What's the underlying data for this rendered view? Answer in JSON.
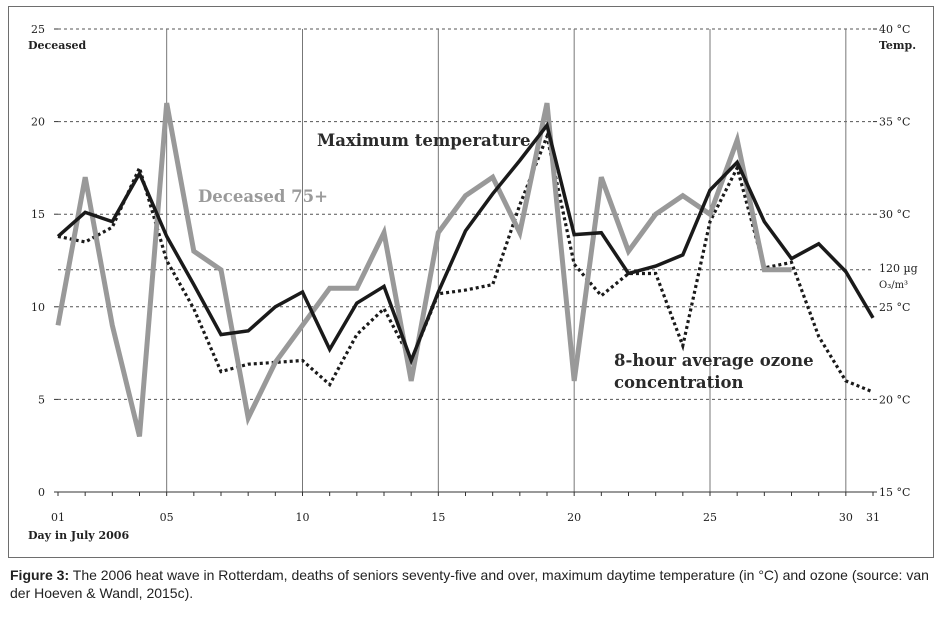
{
  "chart_data": {
    "type": "line",
    "left_axis": {
      "title": "Deceased",
      "ylim": [
        0,
        25
      ],
      "ticks": [
        0,
        5,
        10,
        15,
        20,
        25
      ]
    },
    "right_axis": {
      "title": "Temp.",
      "ylim": [
        15,
        40
      ],
      "ticks": [
        {
          "value": 15,
          "label": "15 °C"
        },
        {
          "value": 20,
          "label": "20 °C"
        },
        {
          "value": 25,
          "label": "25 °C"
        },
        {
          "value": 30,
          "label": "30 °C"
        },
        {
          "value": 35,
          "label": "35 °C"
        },
        {
          "value": 40,
          "label": "40 °C"
        }
      ],
      "ozone_reference": {
        "value": 27,
        "label_line1": "120 µg",
        "label_line2": "O₃/m³"
      }
    },
    "x_axis": {
      "label": "Day in  July 2006",
      "xlim": [
        1,
        31
      ],
      "ticks": [
        {
          "value": 1,
          "label": "01"
        },
        {
          "value": 5,
          "label": "05"
        },
        {
          "value": 10,
          "label": "10"
        },
        {
          "value": 15,
          "label": "15"
        },
        {
          "value": 20,
          "label": "20"
        },
        {
          "value": 25,
          "label": "25"
        },
        {
          "value": 30,
          "label": "30"
        },
        {
          "value": 31,
          "label": "31"
        }
      ],
      "vertical_gridlines": [
        5,
        10,
        15,
        20,
        25,
        30
      ]
    },
    "series": [
      {
        "name": "Deceased 75+",
        "axis": "left",
        "color": "#999999",
        "style": "solid",
        "x": [
          1,
          2,
          3,
          4,
          5,
          6,
          7,
          8,
          9,
          10,
          11,
          12,
          13,
          14,
          15,
          16,
          17,
          18,
          19,
          20,
          21,
          22,
          23,
          24,
          25,
          26,
          27,
          28,
          29,
          30,
          31
        ],
        "values": [
          9,
          17,
          9,
          3,
          21,
          13,
          12,
          4,
          7,
          9,
          11,
          11,
          14,
          6,
          14,
          16,
          17,
          14,
          21,
          6,
          17,
          13,
          15,
          16,
          15,
          19,
          12,
          12,
          null,
          null,
          null
        ]
      },
      {
        "name": "Maximum temperature",
        "axis": "right",
        "color": "#1a1a1a",
        "style": "solid",
        "x": [
          1,
          2,
          3,
          4,
          5,
          6,
          7,
          8,
          9,
          10,
          11,
          12,
          13,
          14,
          15,
          16,
          17,
          18,
          19,
          20,
          21,
          22,
          23,
          24,
          25,
          26,
          27,
          28,
          29,
          30,
          31
        ],
        "values": [
          28.8,
          30.1,
          29.6,
          32.2,
          28.8,
          26.2,
          23.5,
          23.7,
          25.0,
          25.8,
          22.7,
          25.2,
          26.1,
          22.1,
          25.8,
          29.1,
          31.1,
          32.9,
          34.8,
          28.9,
          29.0,
          26.8,
          27.2,
          27.8,
          31.3,
          32.8,
          29.6,
          27.6,
          28.4,
          26.9,
          24.4
        ]
      },
      {
        "name": "8-hour average ozone concentration",
        "axis": "right",
        "color": "#1a1a1a",
        "style": "dotted",
        "x": [
          1,
          2,
          3,
          4,
          5,
          6,
          7,
          8,
          9,
          10,
          11,
          12,
          13,
          14,
          15,
          16,
          17,
          18,
          19,
          20,
          21,
          22,
          23,
          24,
          25,
          26,
          27,
          28,
          29,
          30,
          31
        ],
        "values": [
          28.8,
          28.5,
          29.3,
          32.5,
          27.5,
          24.9,
          21.5,
          21.9,
          22.0,
          22.1,
          20.8,
          23.5,
          24.9,
          22.1,
          25.7,
          25.9,
          26.2,
          30.5,
          34.2,
          27.3,
          25.6,
          26.8,
          26.8,
          22.9,
          29.6,
          32.5,
          27.1,
          27.4,
          23.4,
          21.0,
          20.4
        ]
      }
    ],
    "annotations": [
      {
        "text": "Maximum temperature",
        "series": "Maximum temperature"
      },
      {
        "text": "Deceased 75+",
        "series": "Deceased 75+"
      },
      {
        "text_line1": "8-hour average ozone",
        "text_line2": "concentration",
        "series": "8-hour average ozone concentration"
      }
    ]
  },
  "caption": {
    "label": "Figure 3:",
    "text": " The 2006 heat wave in Rotterdam, deaths of seniors seventy-five and over, maximum daytime temperature (in °C) and ozone (source: van der Hoeven & Wandl, 2015c)."
  }
}
